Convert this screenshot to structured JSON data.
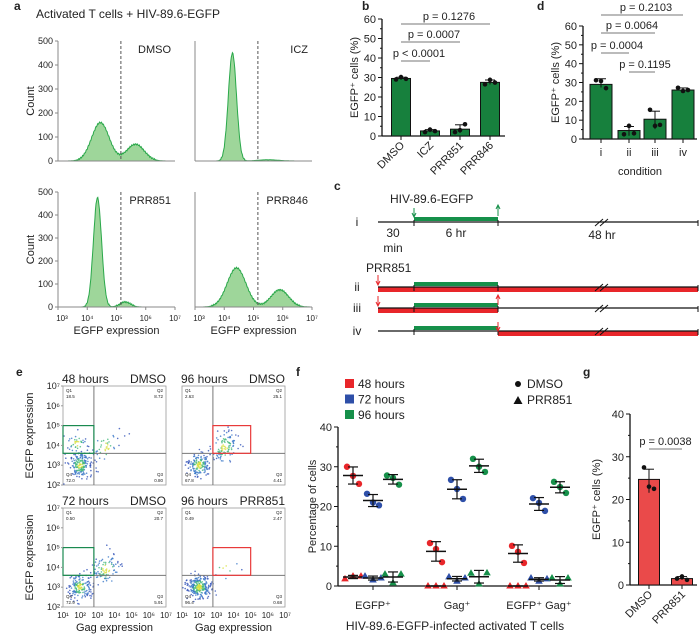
{
  "panel_letters": {
    "a": "a",
    "b": "b",
    "c": "c",
    "d": "d",
    "e": "e",
    "f": "f",
    "g": "g"
  },
  "colors": {
    "green_bar": "#17803d",
    "hist_fill": "#9ed69a",
    "hist_line": "#2aa84a",
    "red": "#e8262a",
    "red_bar": "#ea4a4a",
    "blue": "#2e4fa8",
    "green": "#16904a",
    "gate_green": "#1a8a50",
    "gate_red": "#e83a3a"
  },
  "chart_data": [
    {
      "id": "a",
      "type": "area",
      "title": "Activated T cells + HIV-89.6-EGFP",
      "xlabel": "EGFP expression",
      "ylabel": "Count",
      "ylim": [
        0,
        500
      ],
      "yticks": [
        "0",
        "100",
        "200",
        "300",
        "400",
        "500"
      ],
      "xlim_log10": [
        3,
        7
      ],
      "xticks": [
        "10³",
        "10⁴",
        "10⁵",
        "10⁶",
        "10⁷"
      ],
      "gate_log10": 5.15,
      "series": [
        {
          "name": "DMSO",
          "peaks": [
            {
              "center_log10": 4.45,
              "count": 160,
              "sd": 0.3
            },
            {
              "center_log10": 5.65,
              "count": 70,
              "sd": 0.3
            }
          ]
        },
        {
          "name": "ICZ",
          "peaks": [
            {
              "center_log10": 4.28,
              "count": 450,
              "sd": 0.14
            },
            {
              "center_log10": 5.5,
              "count": 5,
              "sd": 0.35
            }
          ]
        },
        {
          "name": "PRR851",
          "peaks": [
            {
              "center_log10": 4.35,
              "count": 475,
              "sd": 0.14
            },
            {
              "center_log10": 5.3,
              "count": 22,
              "sd": 0.18
            }
          ]
        },
        {
          "name": "PRR846",
          "peaks": [
            {
              "center_log10": 4.42,
              "count": 170,
              "sd": 0.32
            },
            {
              "center_log10": 5.9,
              "count": 75,
              "sd": 0.3
            }
          ]
        }
      ]
    },
    {
      "id": "b",
      "type": "bar",
      "ylabel": "EGFP⁺ cells (%)",
      "ylim": [
        0,
        60
      ],
      "yticks": [
        "0",
        "10",
        "20",
        "30",
        "40",
        "50",
        "60"
      ],
      "categories": [
        "DMSO",
        "ICZ",
        "PRR851",
        "PRR846"
      ],
      "values": [
        29.5,
        2.6,
        3.5,
        27.5
      ],
      "points": [
        [
          29,
          30.2,
          29.3
        ],
        [
          2,
          3.3,
          2.5
        ],
        [
          2,
          3,
          6
        ],
        [
          26.5,
          28.8,
          27.4
        ]
      ],
      "comparisons": [
        {
          "from": 0,
          "to": 1,
          "label": "p < 0.0001"
        },
        {
          "from": 0,
          "to": 2,
          "label": "p = 0.0007"
        },
        {
          "from": 0,
          "to": 3,
          "label": "p = 0.1276"
        }
      ]
    },
    {
      "id": "c",
      "type": "timeline",
      "virus_label": "HIV-89.6-EGFP",
      "drug_label": "PRR851",
      "rows": [
        "i",
        "ii",
        "iii",
        "iv"
      ],
      "pre_1": "30",
      "pre_2": "min",
      "infection": "6 hr",
      "culture": "48 hr"
    },
    {
      "id": "d",
      "type": "bar",
      "ylabel": "EGFP⁺ cells (%)",
      "xlabel": "condition",
      "ylim": [
        0,
        60
      ],
      "yticks": [
        "0",
        "10",
        "20",
        "30",
        "40",
        "50",
        "60"
      ],
      "categories": [
        "i",
        "ii",
        "iii",
        "iv"
      ],
      "values": [
        29,
        4.5,
        10.5,
        26
      ],
      "points": [
        [
          31.2,
          30.8,
          27
        ],
        [
          2.5,
          7,
          3
        ],
        [
          15.5,
          7,
          7.5
        ],
        [
          27.2,
          25.5,
          26
        ]
      ],
      "comparisons": [
        {
          "from": 0,
          "to": 1,
          "label": "p = 0.0004"
        },
        {
          "from": 1,
          "to": 2,
          "label": "p = 0.1195"
        },
        {
          "from": 0,
          "to": 2,
          "label": "p = 0.0064"
        },
        {
          "from": 0,
          "to": 3,
          "label": "p = 0.2103"
        }
      ]
    },
    {
      "id": "e",
      "type": "scatter",
      "xlabel": "Gag expression",
      "ylabel": "EGFP expression",
      "xticks": [
        "10¹",
        "10²",
        "10³",
        "10⁴",
        "10⁵",
        "10⁶",
        "10⁷"
      ],
      "yticks": [
        "10²",
        "10³",
        "10⁴",
        "10⁵",
        "10⁶",
        "10⁷"
      ],
      "plots": [
        {
          "time": "48 hours",
          "treatment": "DMSO",
          "gate": "green",
          "quadrants": {
            "Q1": "18.5",
            "Q2": "8.72",
            "Q3": "0.80",
            "Q4": "72.0"
          }
        },
        {
          "time": "96 hours",
          "treatment": "DMSO",
          "gate": "red",
          "quadrants": {
            "Q1": "2.63",
            "Q2": "25.1",
            "Q3": "4.41",
            "Q4": "67.8"
          }
        },
        {
          "time": "72 hours",
          "treatment": "DMSO",
          "gate": "green",
          "quadrants": {
            "Q1": "0.50",
            "Q2": "20.7",
            "Q3": "5.91",
            "Q4": "72.9"
          }
        },
        {
          "time": "96 hours",
          "treatment": "PRR851",
          "gate": "red",
          "quadrants": {
            "Q1": "0.49",
            "Q2": "2.47",
            "Q3": "0.68",
            "Q4": "96.4"
          }
        }
      ]
    },
    {
      "id": "f",
      "type": "scatter",
      "ylabel": "Percentage of cells",
      "xlabel": "HIV-89.6-EGFP-infected activated T cells",
      "ylim": [
        0,
        40
      ],
      "yticks": [
        "0",
        "10",
        "20",
        "30",
        "40"
      ],
      "categories": [
        "EGFP⁺",
        "Gag⁺",
        "EGFP⁺ Gag⁺"
      ],
      "markers": [
        {
          "name": "DMSO",
          "shape": "circle"
        },
        {
          "name": "PRR851",
          "shape": "triangle"
        }
      ],
      "series": [
        {
          "name": "48 hours",
          "color": "#e8262a",
          "DMSO": [
            [
              30,
              27.7,
              25.7
            ],
            [
              10.8,
              9.3,
              6.0
            ],
            [
              10.1,
              8.6,
              5.8
            ]
          ],
          "PRR851": [
            [
              1.8,
              2.5,
              2.5
            ],
            [
              0,
              0,
              0
            ],
            [
              0,
              0,
              0
            ]
          ]
        },
        {
          "name": "72 hours",
          "color": "#2e4fa8",
          "DMSO": [
            [
              23.2,
              21,
              20.3
            ],
            [
              26.7,
              24.4,
              21.9
            ],
            [
              22.1,
              20.9,
              18.9
            ]
          ],
          "PRR851": [
            [
              2.5,
              1.5,
              2
            ],
            [
              2.3,
              1.2,
              2
            ],
            [
              2,
              1.2,
              1.8
            ]
          ]
        },
        {
          "name": "96 hours",
          "color": "#16904a",
          "DMSO": [
            [
              27.8,
              27.2,
              25.5
            ],
            [
              32,
              30,
              28.7
            ],
            [
              26.2,
              24.9,
              23.4
            ]
          ],
          "PRR851": [
            [
              3,
              0.8,
              3
            ],
            [
              3.2,
              0.5,
              3.3
            ],
            [
              2,
              0.5,
              2
            ]
          ]
        }
      ]
    },
    {
      "id": "g",
      "type": "bar",
      "ylabel": "EGFP⁺ cells (%)",
      "ylim": [
        0,
        40
      ],
      "yticks": [
        "0",
        "10",
        "20",
        "30",
        "40"
      ],
      "categories": [
        "DMSO",
        "PRR851"
      ],
      "values": [
        24.7,
        1.5
      ],
      "points": [
        [
          27.5,
          23,
          22.5
        ],
        [
          1.5,
          2,
          1.2
        ]
      ],
      "comparisons": [
        {
          "from": 0,
          "to": 1,
          "label": "p = 0.0038"
        }
      ]
    }
  ]
}
